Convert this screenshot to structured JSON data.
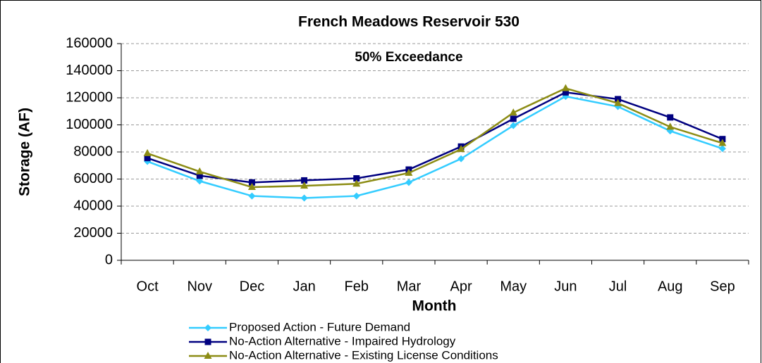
{
  "chart_data": {
    "type": "line",
    "title": "French Meadows Reservoir 530",
    "annotation": "50% Exceedance",
    "x_label": "Month",
    "y_label": "Storage (AF)",
    "categories": [
      "Oct",
      "Nov",
      "Dec",
      "Jan",
      "Feb",
      "Mar",
      "Apr",
      "May",
      "Jun",
      "Jul",
      "Aug",
      "Sep"
    ],
    "series": [
      {
        "name": "Proposed Action - Future Demand",
        "color": "#33ccff",
        "marker": "diamond",
        "values": [
          73000,
          58500,
          47500,
          46000,
          47500,
          57500,
          75000,
          99500,
          121000,
          113500,
          95500,
          82500
        ]
      },
      {
        "name": "No-Action Alternative - Impaired Hydrology",
        "color": "#000080",
        "marker": "square",
        "values": [
          75500,
          62500,
          57500,
          59000,
          60500,
          67000,
          84000,
          104500,
          124000,
          119000,
          105500,
          89500
        ]
      },
      {
        "name": "No-Action Alternative - Existing License Conditions",
        "color": "#8c8c14",
        "marker": "triangle",
        "values": [
          79000,
          65500,
          54000,
          55000,
          56500,
          64500,
          82000,
          109000,
          127000,
          116000,
          98500,
          86500
        ]
      }
    ],
    "ylim": [
      0,
      160000
    ],
    "yticks": [
      0,
      20000,
      40000,
      60000,
      80000,
      100000,
      120000,
      140000,
      160000
    ],
    "grid": true,
    "legend": "bottom"
  }
}
